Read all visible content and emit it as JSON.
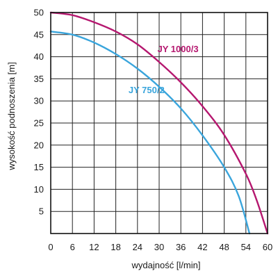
{
  "chart_data": {
    "type": "line",
    "xlabel": "wydajność [l/min]",
    "ylabel": "wysokość podnoszenia [m]",
    "xlim": [
      0,
      60
    ],
    "ylim": [
      0,
      50
    ],
    "x_ticks": [
      0,
      6,
      12,
      18,
      24,
      30,
      36,
      42,
      48,
      54,
      60
    ],
    "y_ticks": [
      5,
      10,
      15,
      20,
      25,
      30,
      35,
      40,
      45,
      50
    ],
    "grid": true,
    "series": [
      {
        "name": "JY 1000/3",
        "color": "#b5176f",
        "points": [
          [
            0,
            50
          ],
          [
            6,
            49.4
          ],
          [
            12,
            47.8
          ],
          [
            18,
            45.7
          ],
          [
            24,
            42.8
          ],
          [
            30,
            38.8
          ],
          [
            36,
            34.2
          ],
          [
            42,
            28.8
          ],
          [
            48,
            22.3
          ],
          [
            54,
            13.5
          ],
          [
            57,
            7.5
          ],
          [
            60,
            0
          ]
        ]
      },
      {
        "name": "JY 750/2",
        "color": "#3aa5dc",
        "points": [
          [
            0,
            45.7
          ],
          [
            6,
            45
          ],
          [
            12,
            43.2
          ],
          [
            18,
            40.6
          ],
          [
            24,
            37.3
          ],
          [
            30,
            33.2
          ],
          [
            36,
            28.3
          ],
          [
            42,
            22.2
          ],
          [
            48,
            15
          ],
          [
            52,
            8.5
          ],
          [
            55,
            0
          ]
        ]
      }
    ]
  }
}
